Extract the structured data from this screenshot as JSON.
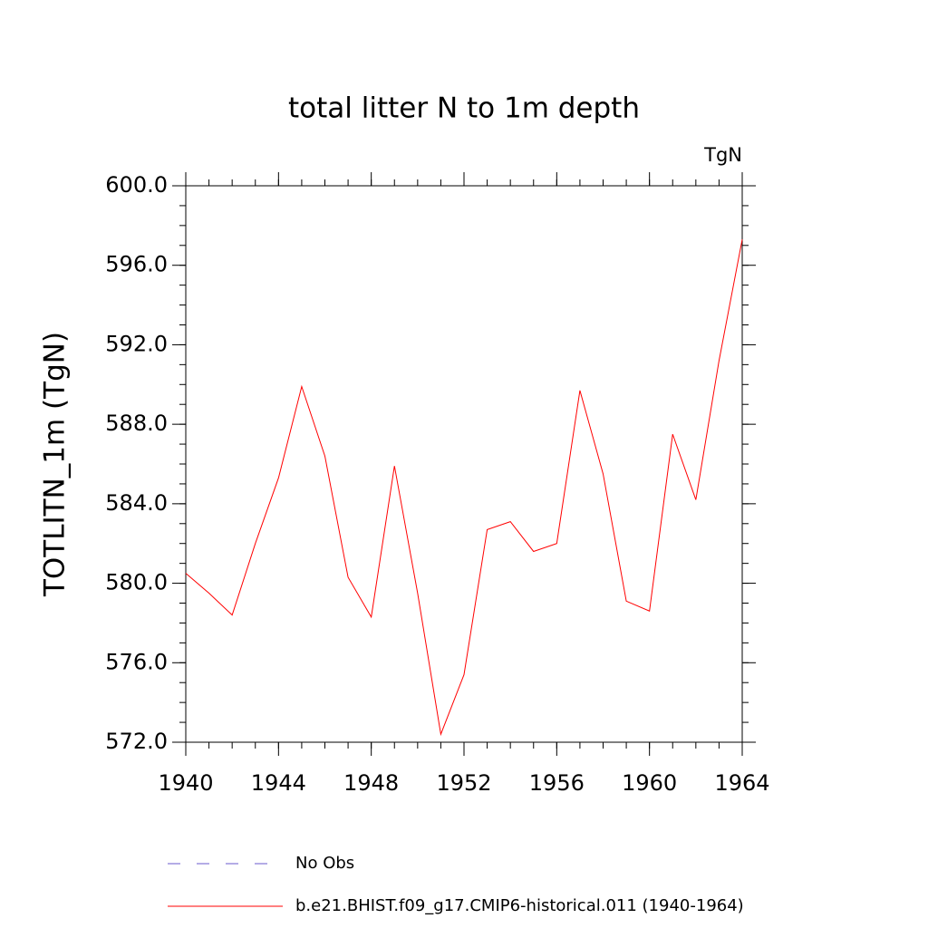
{
  "chart_data": {
    "type": "line",
    "title": "total litter N to 1m depth",
    "units": "TgN",
    "ylabel": "TOTLITN_1m  (TgN)",
    "x": [
      1940,
      1941,
      1942,
      1943,
      1944,
      1945,
      1946,
      1947,
      1948,
      1949,
      1950,
      1951,
      1952,
      1953,
      1954,
      1955,
      1956,
      1957,
      1958,
      1959,
      1960,
      1961,
      1962,
      1963,
      1964
    ],
    "series": [
      {
        "name": "b.e21.BHIST.f09_g17.CMIP6-historical.011 (1940-1964)",
        "color": "#ff0000",
        "values": [
          580.5,
          579.5,
          578.4,
          582.0,
          585.3,
          589.9,
          586.4,
          580.3,
          578.3,
          585.9,
          579.5,
          572.4,
          575.4,
          582.7,
          583.1,
          581.6,
          582.0,
          589.7,
          585.5,
          579.1,
          578.6,
          587.5,
          584.2,
          591.2,
          597.3
        ]
      }
    ],
    "obs_legend": {
      "name": "No Obs",
      "color": "#6a5acd",
      "style": "dashed"
    },
    "xlim": [
      1940,
      1964
    ],
    "xticks": [
      1940,
      1944,
      1948,
      1952,
      1956,
      1960,
      1964
    ],
    "xticks_minor": [
      1940,
      1941,
      1942,
      1943,
      1944,
      1945,
      1946,
      1947,
      1948,
      1949,
      1950,
      1951,
      1952,
      1953,
      1954,
      1955,
      1956,
      1957,
      1958,
      1959,
      1960,
      1961,
      1962,
      1963,
      1964
    ],
    "ylim": [
      572,
      600
    ],
    "yticks": [
      {
        "value": 572,
        "label": "572.0"
      },
      {
        "value": 576,
        "label": "576.0"
      },
      {
        "value": 580,
        "label": "580.0"
      },
      {
        "value": 584,
        "label": "584.0"
      },
      {
        "value": 588,
        "label": "588.0"
      },
      {
        "value": 592,
        "label": "592.0"
      },
      {
        "value": 596,
        "label": "596.0"
      },
      {
        "value": 600,
        "label": "600.0"
      }
    ],
    "yticks_minor": [
      572,
      573,
      574,
      575,
      576,
      577,
      578,
      579,
      580,
      581,
      582,
      583,
      584,
      585,
      586,
      587,
      588,
      589,
      590,
      591,
      592,
      593,
      594,
      595,
      596,
      597,
      598,
      599,
      600
    ]
  }
}
